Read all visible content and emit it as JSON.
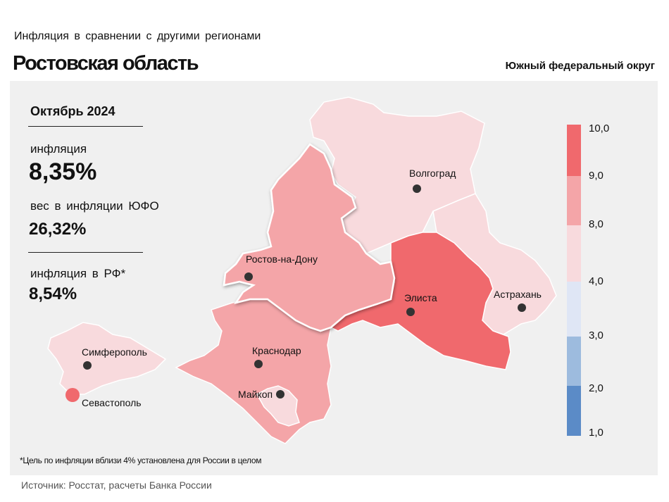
{
  "header": {
    "supertitle": "Инфляция в сравнении с другими регионами",
    "title": "Ростовская область",
    "district": "Южный федеральный округ"
  },
  "stats": {
    "period": "Октябрь 2024",
    "inflation_label": "инфляция",
    "inflation_value": "8,35%",
    "weight_label": "вес в инфляции ЮФО",
    "weight_value": "26,32%",
    "russia_label": "инфляция в РФ*",
    "russia_value": "8,54%"
  },
  "map": {
    "highlighted_region": "Ростовская область",
    "regions": [
      {
        "name": "Волгоград",
        "color": "#f8dadd"
      },
      {
        "name": "Ростов-на-Дону",
        "color": "#f4a5a8",
        "highlighted": true
      },
      {
        "name": "Элиста",
        "color": "#f0696d"
      },
      {
        "name": "Астрахань",
        "color": "#f8dadd"
      },
      {
        "name": "Краснодар",
        "color": "#f4a5a8"
      },
      {
        "name": "Майкоп",
        "color": "#f8dadd"
      },
      {
        "name": "Симферополь",
        "color": "#f8dadd"
      },
      {
        "name": "Севастополь",
        "color": "#f0696d"
      }
    ],
    "city_labels": {
      "volgograd": "Волгоград",
      "rostov": "Ростов-на-Дону",
      "elista": "Элиста",
      "astrakhan": "Астрахань",
      "krasnodar": "Краснодар",
      "maykop": "Майкоп",
      "simferopol": "Симферополь",
      "sevastopol": "Севастополь"
    }
  },
  "legend": {
    "segments": [
      {
        "range": "9,0–10,0",
        "color": "#f0696d"
      },
      {
        "range": "8,0–9,0",
        "color": "#f4a5a8"
      },
      {
        "range": "4,0–8,0",
        "color": "#f8dadd"
      },
      {
        "range": "3,0–4,0",
        "color": "#dfe6f5"
      },
      {
        "range": "2,0–3,0",
        "color": "#9dbbde"
      },
      {
        "range": "1,0–2,0",
        "color": "#5b8bc7"
      }
    ],
    "ticks": [
      "10,0",
      "9,0",
      "8,0",
      "4,0",
      "3,0",
      "2,0",
      "1,0"
    ]
  },
  "footnote": "*Цель по инфляции вблизи 4% установлена для России в целом",
  "source": "Источник: Росстат, расчеты Банка России"
}
